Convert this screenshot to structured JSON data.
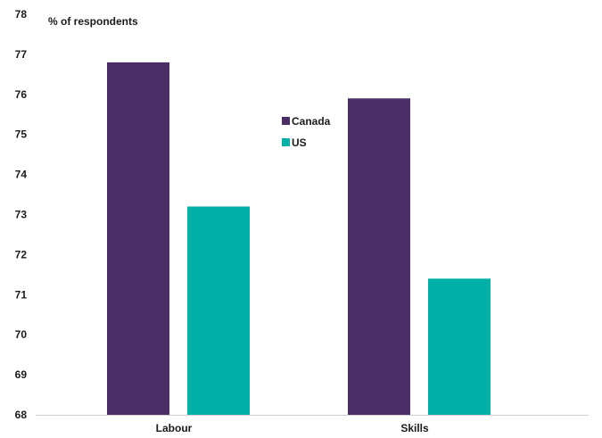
{
  "chart_data": {
    "type": "bar",
    "title": "",
    "ylabel": "% of respondents",
    "xlabel": "",
    "categories": [
      "Labour",
      "Skills"
    ],
    "series": [
      {
        "name": "Canada",
        "color": "#4b2e66",
        "values": [
          76.8,
          75.9
        ]
      },
      {
        "name": "US",
        "color": "#00b0a6",
        "values": [
          73.2,
          71.4
        ]
      }
    ],
    "ylim": [
      68,
      78
    ],
    "yticks": [
      68,
      69,
      70,
      71,
      72,
      73,
      74,
      75,
      76,
      77,
      78
    ],
    "grid": false,
    "legend_position": "center-top"
  }
}
